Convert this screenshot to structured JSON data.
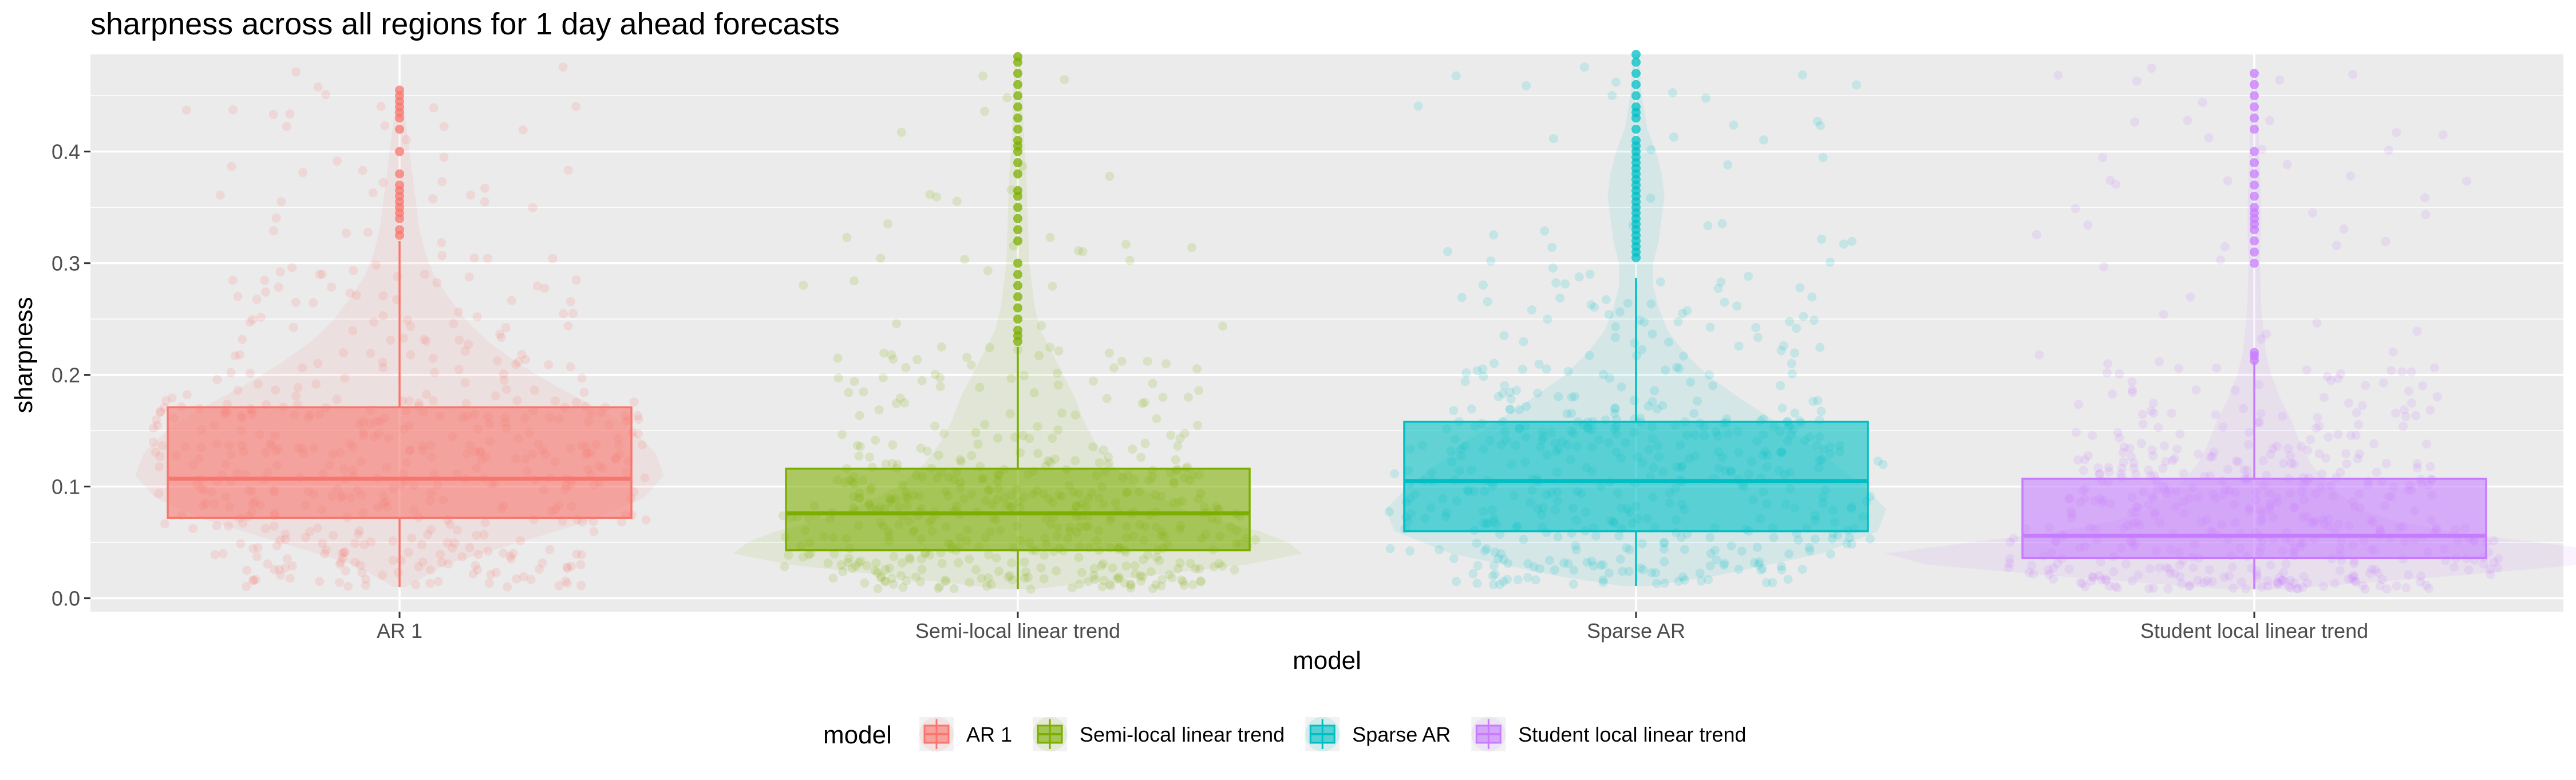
{
  "chart_data": {
    "type": "box",
    "title": "sharpness across all regions for 1 day ahead forecasts",
    "xlabel": "model",
    "ylabel": "sharpness",
    "ylim": [
      -0.012,
      0.487
    ],
    "yticks": [
      0.0,
      0.1,
      0.2,
      0.3,
      0.4
    ],
    "ytick_labels": [
      "0.0",
      "0.1",
      "0.2",
      "0.3",
      "0.4"
    ],
    "grid": true,
    "legend": {
      "title": "model",
      "position": "bottom"
    },
    "categories": [
      "AR 1",
      "Semi-local linear trend",
      "Sparse AR",
      "Student local linear trend"
    ],
    "series": [
      {
        "name": "AR 1",
        "color": "#F8766D",
        "q1": 0.072,
        "median": 0.107,
        "q3": 0.171,
        "whisker_low": 0.01,
        "whisker_high": 0.32,
        "outliers": [
          0.325,
          0.33,
          0.34,
          0.345,
          0.35,
          0.355,
          0.36,
          0.365,
          0.37,
          0.38,
          0.4,
          0.42,
          0.43,
          0.435,
          0.44,
          0.445,
          0.45,
          0.455
        ],
        "violin": [
          [
            0.01,
            0.02
          ],
          [
            0.03,
            0.16
          ],
          [
            0.05,
            0.42
          ],
          [
            0.07,
            0.68
          ],
          [
            0.09,
            0.86
          ],
          [
            0.11,
            0.93
          ],
          [
            0.13,
            0.9
          ],
          [
            0.15,
            0.82
          ],
          [
            0.17,
            0.7
          ],
          [
            0.19,
            0.55
          ],
          [
            0.21,
            0.42
          ],
          [
            0.23,
            0.31
          ],
          [
            0.25,
            0.23
          ],
          [
            0.27,
            0.17
          ],
          [
            0.29,
            0.12
          ],
          [
            0.31,
            0.09
          ],
          [
            0.33,
            0.07
          ],
          [
            0.35,
            0.06
          ],
          [
            0.37,
            0.05
          ],
          [
            0.4,
            0.035
          ],
          [
            0.43,
            0.02
          ],
          [
            0.455,
            0.01
          ]
        ]
      },
      {
        "name": "Semi-local linear trend",
        "color": "#7CAE00",
        "q1": 0.043,
        "median": 0.076,
        "q3": 0.116,
        "whisker_low": 0.008,
        "whisker_high": 0.225,
        "outliers": [
          0.23,
          0.235,
          0.24,
          0.25,
          0.26,
          0.27,
          0.28,
          0.29,
          0.3,
          0.32,
          0.33,
          0.34,
          0.35,
          0.36,
          0.365,
          0.38,
          0.39,
          0.4,
          0.405,
          0.41,
          0.42,
          0.43,
          0.44,
          0.45,
          0.46,
          0.47,
          0.48,
          0.485
        ],
        "violin": [
          [
            0.008,
            0.05
          ],
          [
            0.02,
            0.45
          ],
          [
            0.03,
            0.8
          ],
          [
            0.04,
            1.0
          ],
          [
            0.05,
            0.95
          ],
          [
            0.06,
            0.85
          ],
          [
            0.07,
            0.7
          ],
          [
            0.08,
            0.58
          ],
          [
            0.09,
            0.5
          ],
          [
            0.1,
            0.42
          ],
          [
            0.12,
            0.33
          ],
          [
            0.14,
            0.27
          ],
          [
            0.16,
            0.23
          ],
          [
            0.18,
            0.2
          ],
          [
            0.2,
            0.16
          ],
          [
            0.22,
            0.12
          ],
          [
            0.24,
            0.08
          ],
          [
            0.26,
            0.06
          ],
          [
            0.3,
            0.04
          ],
          [
            0.34,
            0.035
          ],
          [
            0.38,
            0.03
          ],
          [
            0.42,
            0.02
          ],
          [
            0.46,
            0.015
          ],
          [
            0.487,
            0.01
          ]
        ]
      },
      {
        "name": "Sparse AR",
        "color": "#00BFC4",
        "q1": 0.06,
        "median": 0.105,
        "q3": 0.158,
        "whisker_low": 0.011,
        "whisker_high": 0.287,
        "outliers": [
          0.305,
          0.31,
          0.315,
          0.32,
          0.325,
          0.33,
          0.335,
          0.34,
          0.345,
          0.35,
          0.355,
          0.36,
          0.365,
          0.37,
          0.375,
          0.38,
          0.385,
          0.39,
          0.395,
          0.4,
          0.405,
          0.41,
          0.42,
          0.43,
          0.435,
          0.44,
          0.45,
          0.46,
          0.47,
          0.48,
          0.487
        ],
        "violin": [
          [
            0.011,
            0.05
          ],
          [
            0.02,
            0.28
          ],
          [
            0.04,
            0.65
          ],
          [
            0.06,
            0.85
          ],
          [
            0.08,
            0.88
          ],
          [
            0.1,
            0.8
          ],
          [
            0.12,
            0.7
          ],
          [
            0.14,
            0.6
          ],
          [
            0.16,
            0.48
          ],
          [
            0.18,
            0.36
          ],
          [
            0.2,
            0.25
          ],
          [
            0.22,
            0.17
          ],
          [
            0.24,
            0.11
          ],
          [
            0.26,
            0.08
          ],
          [
            0.28,
            0.06
          ],
          [
            0.3,
            0.06
          ],
          [
            0.32,
            0.08
          ],
          [
            0.34,
            0.09
          ],
          [
            0.36,
            0.1
          ],
          [
            0.38,
            0.09
          ],
          [
            0.4,
            0.07
          ],
          [
            0.42,
            0.04
          ],
          [
            0.45,
            0.02
          ],
          [
            0.487,
            0.01
          ]
        ]
      },
      {
        "name": "Student local linear trend",
        "color": "#C77CFF",
        "q1": 0.036,
        "median": 0.056,
        "q3": 0.107,
        "whisker_low": 0.008,
        "whisker_high": 0.212,
        "outliers": [
          0.213,
          0.217,
          0.22,
          0.3,
          0.31,
          0.32,
          0.33,
          0.335,
          0.34,
          0.345,
          0.35,
          0.36,
          0.37,
          0.38,
          0.39,
          0.4,
          0.42,
          0.43,
          0.44,
          0.45,
          0.46,
          0.47
        ],
        "violin": [
          [
            0.008,
            0.1
          ],
          [
            0.02,
            0.7
          ],
          [
            0.03,
            1.15
          ],
          [
            0.04,
            1.3
          ],
          [
            0.05,
            1.0
          ],
          [
            0.06,
            0.68
          ],
          [
            0.07,
            0.48
          ],
          [
            0.08,
            0.37
          ],
          [
            0.1,
            0.27
          ],
          [
            0.12,
            0.2
          ],
          [
            0.14,
            0.16
          ],
          [
            0.16,
            0.13
          ],
          [
            0.18,
            0.09
          ],
          [
            0.2,
            0.06
          ],
          [
            0.22,
            0.04
          ],
          [
            0.26,
            0.025
          ],
          [
            0.3,
            0.02
          ],
          [
            0.34,
            0.025
          ],
          [
            0.38,
            0.02
          ],
          [
            0.42,
            0.015
          ],
          [
            0.47,
            0.01
          ]
        ]
      }
    ]
  }
}
